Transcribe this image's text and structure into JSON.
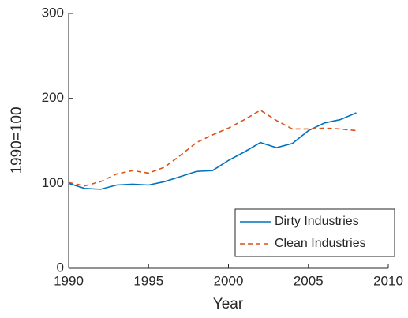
{
  "chart_data": {
    "type": "line",
    "xlabel": "Year",
    "ylabel": "1990=100",
    "x": [
      1990,
      1991,
      1992,
      1993,
      1994,
      1995,
      1996,
      1997,
      1998,
      1999,
      2000,
      2001,
      2002,
      2003,
      2004,
      2005,
      2006,
      2007,
      2008
    ],
    "series": [
      {
        "name": "Dirty Industries",
        "color": "#0072bd",
        "dash": false,
        "values": [
          100,
          94,
          93,
          98,
          99,
          98,
          102,
          108,
          114,
          115,
          127,
          137,
          148,
          142,
          147,
          162,
          171,
          175,
          183
        ]
      },
      {
        "name": "Clean Industries",
        "color": "#d95319",
        "dash": true,
        "values": [
          101,
          97,
          102,
          111,
          115,
          112,
          119,
          133,
          148,
          157,
          165,
          175,
          186,
          174,
          164,
          164,
          165,
          164,
          162
        ]
      }
    ],
    "xlim": [
      1990,
      2010
    ],
    "xticks": [
      1990,
      1995,
      2000,
      2005,
      2010
    ],
    "ylim": [
      0,
      300
    ],
    "yticks": [
      0,
      100,
      200,
      300
    ],
    "grid": false,
    "legend": "lower right"
  }
}
